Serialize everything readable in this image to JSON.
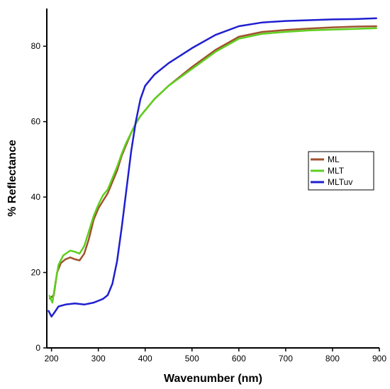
{
  "chart_data": {
    "type": "line",
    "title": "",
    "xlabel": "Wavenumber (nm)",
    "ylabel": "% Reflectance",
    "xlim": [
      190,
      900
    ],
    "ylim": [
      0,
      90
    ],
    "xticks": [
      200,
      300,
      400,
      500,
      600,
      700,
      800,
      900
    ],
    "yticks": [
      0,
      20,
      40,
      60,
      80
    ],
    "grid": false,
    "legend_position": "right",
    "series": [
      {
        "name": "ML",
        "color": "#a0522d",
        "points": [
          [
            195,
            13
          ],
          [
            205,
            14
          ],
          [
            212,
            20
          ],
          [
            220,
            22.5
          ],
          [
            230,
            23.5
          ],
          [
            240,
            24
          ],
          [
            250,
            23.5
          ],
          [
            260,
            23.2
          ],
          [
            270,
            25
          ],
          [
            280,
            29
          ],
          [
            290,
            34
          ],
          [
            300,
            37
          ],
          [
            310,
            39
          ],
          [
            320,
            41
          ],
          [
            330,
            44
          ],
          [
            340,
            47
          ],
          [
            350,
            51
          ],
          [
            360,
            54
          ],
          [
            370,
            57
          ],
          [
            380,
            59.5
          ],
          [
            390,
            61.5
          ],
          [
            400,
            63
          ],
          [
            420,
            66
          ],
          [
            450,
            69.5
          ],
          [
            500,
            74.5
          ],
          [
            550,
            79
          ],
          [
            600,
            82.5
          ],
          [
            650,
            83.8
          ],
          [
            700,
            84.3
          ],
          [
            750,
            84.7
          ],
          [
            800,
            85
          ],
          [
            850,
            85.2
          ],
          [
            895,
            85.3
          ]
        ]
      },
      {
        "name": "MLT",
        "color": "#5ecf1f",
        "points": [
          [
            195,
            14
          ],
          [
            202,
            12
          ],
          [
            208,
            17
          ],
          [
            215,
            22
          ],
          [
            225,
            24.5
          ],
          [
            240,
            25.8
          ],
          [
            250,
            25.5
          ],
          [
            260,
            25
          ],
          [
            270,
            27
          ],
          [
            280,
            31
          ],
          [
            290,
            35
          ],
          [
            300,
            38
          ],
          [
            310,
            40.5
          ],
          [
            320,
            42
          ],
          [
            330,
            45
          ],
          [
            340,
            48
          ],
          [
            350,
            51.5
          ],
          [
            360,
            54.5
          ],
          [
            370,
            57
          ],
          [
            380,
            59.5
          ],
          [
            390,
            61.5
          ],
          [
            400,
            63
          ],
          [
            420,
            66
          ],
          [
            450,
            69.5
          ],
          [
            500,
            74
          ],
          [
            550,
            78.5
          ],
          [
            600,
            82
          ],
          [
            650,
            83.3
          ],
          [
            700,
            83.8
          ],
          [
            750,
            84.2
          ],
          [
            800,
            84.4
          ],
          [
            850,
            84.6
          ],
          [
            895,
            84.8
          ]
        ]
      },
      {
        "name": "MLTuv",
        "color": "#1f1fd0",
        "points": [
          [
            193,
            10
          ],
          [
            200,
            8.3
          ],
          [
            207,
            9.5
          ],
          [
            215,
            11
          ],
          [
            230,
            11.5
          ],
          [
            250,
            11.8
          ],
          [
            270,
            11.5
          ],
          [
            290,
            12
          ],
          [
            300,
            12.5
          ],
          [
            310,
            13
          ],
          [
            320,
            14
          ],
          [
            330,
            17
          ],
          [
            340,
            23
          ],
          [
            350,
            32
          ],
          [
            360,
            42
          ],
          [
            370,
            52
          ],
          [
            380,
            60
          ],
          [
            390,
            66
          ],
          [
            400,
            69.5
          ],
          [
            420,
            72.5
          ],
          [
            450,
            75.5
          ],
          [
            500,
            79.5
          ],
          [
            550,
            83
          ],
          [
            600,
            85.3
          ],
          [
            650,
            86.3
          ],
          [
            700,
            86.7
          ],
          [
            750,
            86.9
          ],
          [
            800,
            87.1
          ],
          [
            850,
            87.2
          ],
          [
            895,
            87.4
          ]
        ]
      }
    ]
  }
}
